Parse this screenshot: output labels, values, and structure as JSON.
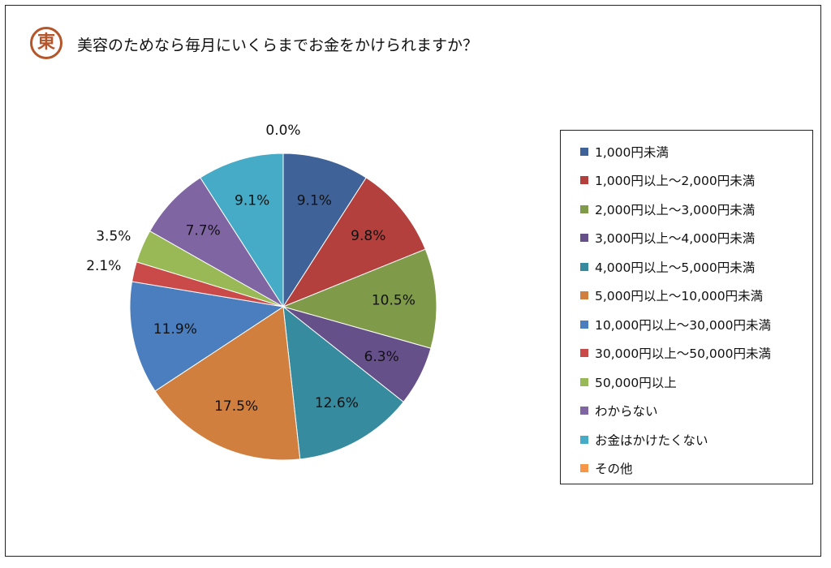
{
  "header": {
    "logo_text": "東",
    "title": "美容のためなら毎月にいくらまでお金をかけられますか？"
  },
  "colors": {
    "logo": "#b5562a"
  },
  "chart_data": {
    "type": "pie",
    "title": "美容のためなら毎月にいくらまでお金をかけられますか？",
    "legend_position": "right",
    "start_angle_deg": 0,
    "direction": "clockwise",
    "slices": [
      {
        "label": "1,000円未満",
        "value": 9.1,
        "value_label": "9.1%",
        "color": "#3f6299"
      },
      {
        "label": "1,000円以上～2,000円未満",
        "value": 9.8,
        "value_label": "9.8%",
        "color": "#b3403d"
      },
      {
        "label": "2,000円以上～3,000円未満",
        "value": 10.5,
        "value_label": "10.5%",
        "color": "#7f9a48"
      },
      {
        "label": "3,000円以上～4,000円未満",
        "value": 6.3,
        "value_label": "6.3%",
        "color": "#66508a"
      },
      {
        "label": "4,000円以上～5,000円未満",
        "value": 12.6,
        "value_label": "12.6%",
        "color": "#378b9f"
      },
      {
        "label": "5,000円以上～10,000円未満",
        "value": 17.5,
        "value_label": "17.5%",
        "color": "#d17f3e"
      },
      {
        "label": "10,000円以上～30,000円未満",
        "value": 11.9,
        "value_label": "11.9%",
        "color": "#4a7ebf"
      },
      {
        "label": "30,000円以上～50,000円未満",
        "value": 2.1,
        "value_label": "2.1%",
        "color": "#c94a48"
      },
      {
        "label": "50,000円以上",
        "value": 3.5,
        "value_label": "3.5%",
        "color": "#98b955"
      },
      {
        "label": "わからない",
        "value": 7.7,
        "value_label": "7.7%",
        "color": "#8065a3"
      },
      {
        "label": "お金はかけたくない",
        "value": 9.1,
        "value_label": "9.1%",
        "color": "#46abc6"
      },
      {
        "label": "その他",
        "value": 0.0,
        "value_label": "0.0%",
        "color": "#f79646"
      }
    ]
  }
}
